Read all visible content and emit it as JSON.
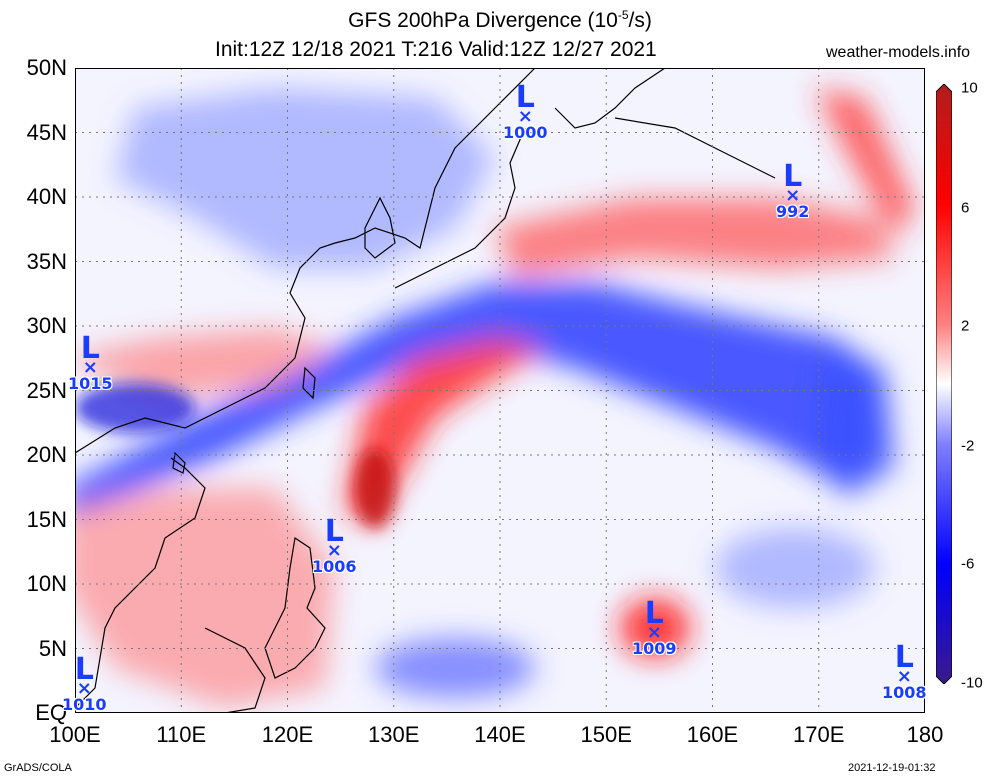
{
  "title": {
    "line1_prefix": "GFS 200hPa Divergence (10",
    "line1_exp": "-5",
    "line1_suffix": "/s)",
    "line2": "Init:12Z 12/18 2021 T:216 Valid:12Z 12/27 2021"
  },
  "site": "weather-models.info",
  "footer": {
    "left": "GrADS/COLA",
    "right": "2021-12-19-01:32"
  },
  "lat_labels": [
    "50N",
    "45N",
    "40N",
    "35N",
    "30N",
    "25N",
    "20N",
    "15N",
    "10N",
    "5N",
    "EQ"
  ],
  "lon_labels": [
    "100E",
    "110E",
    "120E",
    "130E",
    "140E",
    "150E",
    "160E",
    "170E",
    "180"
  ],
  "colorbar": {
    "labels": [
      "10",
      "6",
      "2",
      "-2",
      "-6",
      "-10"
    ],
    "colors": [
      "#b01e1e",
      "#ff0000",
      "#ff8080",
      "#ffffff",
      "#8080ff",
      "#0000ff",
      "#3a1a8a"
    ]
  },
  "lows": [
    {
      "id": "low-1000",
      "pressure": "1000"
    },
    {
      "id": "low-992",
      "pressure": "992"
    },
    {
      "id": "low-1015",
      "pressure": "1015"
    },
    {
      "id": "low-1006",
      "pressure": "1006"
    },
    {
      "id": "low-1009",
      "pressure": "1009"
    },
    {
      "id": "low-1010",
      "pressure": "1010"
    },
    {
      "id": "low-1008",
      "pressure": "1008"
    }
  ],
  "low_letter": "L",
  "low_marker": "×"
}
